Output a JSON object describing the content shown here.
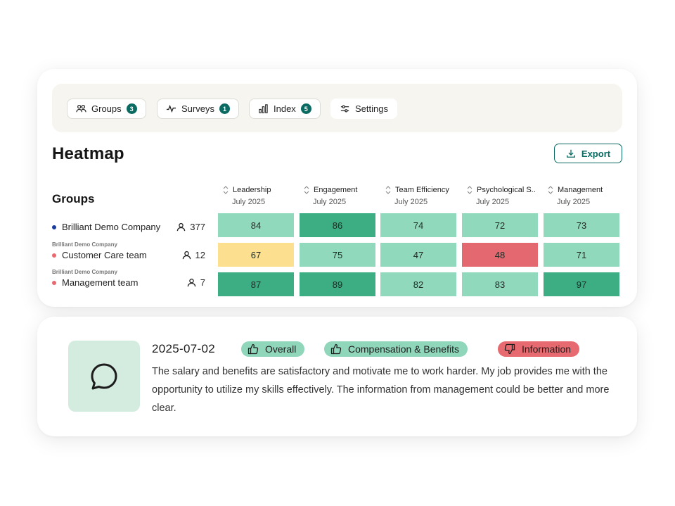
{
  "tabs": [
    {
      "label": "Groups",
      "badge": "3",
      "icon": "groups-icon"
    },
    {
      "label": "Surveys",
      "badge": "1",
      "icon": "activity-icon"
    },
    {
      "label": "Index",
      "badge": "5",
      "icon": "bar-chart-icon"
    },
    {
      "label": "Settings",
      "icon": "sliders-icon"
    }
  ],
  "heatmap": {
    "title": "Heatmap",
    "export_label": "Export",
    "groups_title": "Groups",
    "columns": [
      {
        "name": "Leadership",
        "period": "July 2025"
      },
      {
        "name": "Engagement",
        "period": "July 2025"
      },
      {
        "name": "Team Efficiency",
        "period": "July 2025"
      },
      {
        "name": "Psychological S..",
        "period": "July 2025"
      },
      {
        "name": "Management",
        "period": "July 2025"
      }
    ],
    "rows": [
      {
        "parent": "",
        "name": "Brilliant Demo Company",
        "count": "377",
        "dot_color": "#1a3d9c",
        "values": [
          "84",
          "86",
          "74",
          "72",
          "73"
        ]
      },
      {
        "parent": "Brilliant Demo Company",
        "name": "Customer Care team",
        "count": "12",
        "dot_color": "#e66a6f",
        "values": [
          "67",
          "75",
          "47",
          "48",
          "71"
        ]
      },
      {
        "parent": "Brilliant Demo Company",
        "name": "Management team",
        "count": "7",
        "dot_color": "#e66a6f",
        "values": [
          "87",
          "89",
          "82",
          "83",
          "97"
        ]
      }
    ],
    "cell_colors": [
      [
        "#90d9bd",
        "#3dad84",
        "#90d9bd",
        "#90d9bd",
        "#90d9bd"
      ],
      [
        "#fde08f",
        "#90d9bd",
        "#90d9bd",
        "#e4686f",
        "#90d9bd"
      ],
      [
        "#3dad84",
        "#3dad84",
        "#90d9bd",
        "#90d9bd",
        "#3dad84"
      ]
    ]
  },
  "comment": {
    "date": "2025-07-02",
    "tags": [
      {
        "label": "Overall",
        "sentiment": "positive",
        "icon": "thumbs-up-icon"
      },
      {
        "label": "Compensation & Benefits",
        "sentiment": "positive",
        "icon": "thumbs-up-icon"
      },
      {
        "label": "Information",
        "sentiment": "negative",
        "icon": "thumbs-down-icon"
      }
    ],
    "text": "The salary and benefits are satisfactory and motivate me to work harder. My job provides me with the opportunity to utilize my skills effectively. The information from management could be better and more clear."
  }
}
